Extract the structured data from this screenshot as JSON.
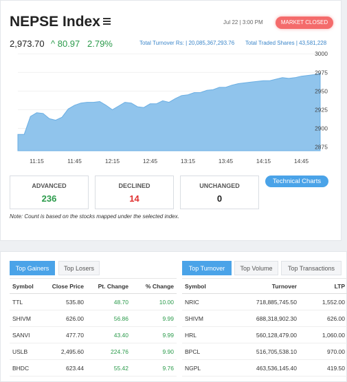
{
  "index": {
    "title": "NEPSE Index",
    "datetime": "Jul 22 | 3:00 PM",
    "market_status": "MARKET CLOSED",
    "value": "2,973.70",
    "change": "80.97",
    "change_pct": "2.79%",
    "total_turnover": "Total Turnover Rs: | 20,085,367,293.76",
    "total_traded_shares": "Total Traded Shares | 43,581,228"
  },
  "colors": {
    "accent": "#4aa3e8",
    "positive": "#2a9a4a",
    "negative": "#e03131",
    "status": "#f46b6b"
  },
  "chart_data": {
    "type": "area",
    "x": [
      "11:00",
      "11:05",
      "11:10",
      "11:15",
      "11:20",
      "11:25",
      "11:30",
      "11:35",
      "11:40",
      "11:45",
      "11:50",
      "11:55",
      "12:00",
      "12:05",
      "12:10",
      "12:15",
      "12:20",
      "12:25",
      "12:30",
      "12:35",
      "12:40",
      "12:45",
      "12:50",
      "12:55",
      "13:00",
      "13:05",
      "13:10",
      "13:15",
      "13:20",
      "13:25",
      "13:30",
      "13:35",
      "13:40",
      "13:45",
      "13:50",
      "13:55",
      "14:00",
      "14:05",
      "14:10",
      "14:15",
      "14:20",
      "14:25",
      "14:30",
      "14:35",
      "14:40",
      "14:45",
      "14:50",
      "14:55",
      "15:00"
    ],
    "y": [
      2892,
      2892,
      2916,
      2921,
      2920,
      2913,
      2911,
      2915,
      2926,
      2931,
      2934,
      2935,
      2935,
      2936,
      2931,
      2925,
      2930,
      2935,
      2934,
      2929,
      2928,
      2933,
      2933,
      2937,
      2935,
      2940,
      2944,
      2945,
      2948,
      2948,
      2951,
      2952,
      2955,
      2955,
      2958,
      2960,
      2961,
      2962,
      2963,
      2964,
      2964,
      2966,
      2968,
      2967,
      2968,
      2970,
      2971,
      2972,
      2973.7
    ],
    "xticks": [
      "11:15",
      "11:45",
      "12:15",
      "12:45",
      "13:15",
      "13:45",
      "14:15",
      "14:45"
    ],
    "yticks": [
      2875,
      2900,
      2925,
      2950,
      2975,
      3000
    ],
    "ylim": [
      2870,
      3002
    ]
  },
  "stats": {
    "advanced_label": "ADVANCED",
    "advanced": "236",
    "declined_label": "DECLINED",
    "declined": "14",
    "unchanged_label": "UNCHANGED",
    "unchanged": "0"
  },
  "technical_charts_label": "Technical Charts",
  "note": "Note: Count is based on the stocks mapped under the selected index.",
  "left_tabs": [
    "Top Gainers",
    "Top Losers"
  ],
  "right_tabs": [
    "Top Turnover",
    "Top Volume",
    "Top Transactions"
  ],
  "gainers": {
    "headers": [
      "Symbol",
      "Close Price",
      "Pt. Change",
      "% Change"
    ],
    "rows": [
      [
        "TTL",
        "535.80",
        "48.70",
        "10.00"
      ],
      [
        "SHIVM",
        "626.00",
        "56.86",
        "9.99"
      ],
      [
        "SANVI",
        "477.70",
        "43.40",
        "9.99"
      ],
      [
        "USLB",
        "2,495.60",
        "224.76",
        "9.90"
      ],
      [
        "BHDC",
        "623.44",
        "55.42",
        "9.76"
      ]
    ]
  },
  "turnover": {
    "headers": [
      "Symbol",
      "Turnover",
      "LTP"
    ],
    "rows": [
      [
        "NRIC",
        "718,885,745.50",
        "1,552.00"
      ],
      [
        "SHIVM",
        "688,318,902.30",
        "626.00"
      ],
      [
        "HRL",
        "560,128,479.00",
        "1,060.00"
      ],
      [
        "BPCL",
        "516,705,538.10",
        "970.00"
      ],
      [
        "NGPL",
        "463,536,145.40",
        "419.50"
      ]
    ]
  }
}
